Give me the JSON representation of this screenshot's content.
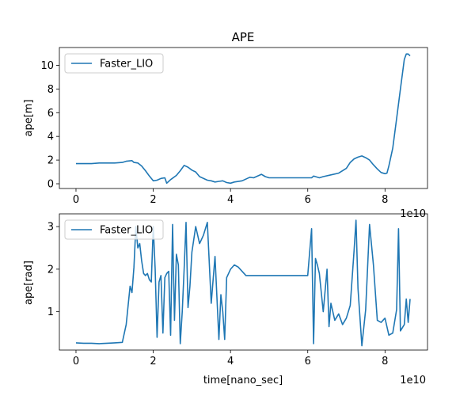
{
  "chart_data": [
    {
      "type": "line",
      "title": "APE",
      "xlabel": "",
      "ylabel": "ape[m]",
      "xlim": [
        -0.43,
        9.1
      ],
      "ylim": [
        -0.4,
        11.5
      ],
      "x_ticks": [
        0,
        2,
        4,
        6,
        8
      ],
      "y_ticks": [
        0,
        2,
        4,
        6,
        8,
        10
      ],
      "x_offset_label": "1e10",
      "legend_position": "upper-left",
      "series": [
        {
          "name": "Faster_LIO",
          "color": "#1f77b4",
          "x": [
            0,
            0.2,
            0.4,
            0.6,
            0.8,
            1.0,
            1.2,
            1.3,
            1.45,
            1.5,
            1.6,
            1.7,
            1.8,
            1.9,
            2.0,
            2.1,
            2.2,
            2.3,
            2.35,
            2.45,
            2.6,
            2.7,
            2.8,
            2.9,
            3.0,
            3.1,
            3.2,
            3.4,
            3.5,
            3.6,
            3.7,
            3.8,
            3.9,
            4.0,
            4.1,
            4.3,
            4.5,
            4.6,
            4.8,
            4.9,
            5.0,
            5.3,
            5.6,
            6.0,
            6.1,
            6.15,
            6.2,
            6.3,
            6.4,
            6.6,
            6.8,
            7.0,
            7.1,
            7.2,
            7.3,
            7.4,
            7.5,
            7.6,
            7.7,
            7.8,
            7.9,
            8.0,
            8.05,
            8.1,
            8.2,
            8.3,
            8.4,
            8.5,
            8.55,
            8.6,
            8.65
          ],
          "values": [
            1.7,
            1.7,
            1.7,
            1.75,
            1.75,
            1.75,
            1.8,
            1.9,
            1.95,
            1.8,
            1.75,
            1.5,
            1.1,
            0.65,
            0.25,
            0.3,
            0.45,
            0.5,
            0.05,
            0.35,
            0.7,
            1.1,
            1.55,
            1.4,
            1.15,
            1.0,
            0.6,
            0.3,
            0.25,
            0.15,
            0.2,
            0.25,
            0.1,
            0.05,
            0.15,
            0.25,
            0.55,
            0.5,
            0.8,
            0.6,
            0.5,
            0.5,
            0.5,
            0.5,
            0.5,
            0.65,
            0.6,
            0.5,
            0.6,
            0.75,
            0.9,
            1.3,
            1.8,
            2.1,
            2.25,
            2.35,
            2.2,
            2.0,
            1.6,
            1.25,
            0.95,
            0.85,
            0.9,
            1.5,
            3.0,
            5.5,
            8.0,
            10.5,
            10.95,
            10.95,
            10.8
          ]
        }
      ]
    },
    {
      "type": "line",
      "title": "",
      "xlabel": "time[nano_sec]",
      "ylabel": "ape[rad]",
      "xlim": [
        -0.43,
        9.1
      ],
      "ylim": [
        0.1,
        3.3
      ],
      "x_ticks": [
        0,
        2,
        4,
        6,
        8
      ],
      "y_ticks": [
        1,
        2,
        3
      ],
      "x_offset_label": "1e10",
      "legend_position": "upper-left",
      "series": [
        {
          "name": "Faster_LIO",
          "color": "#1f77b4",
          "x": [
            0,
            0.2,
            0.4,
            0.6,
            0.8,
            1.0,
            1.2,
            1.3,
            1.4,
            1.45,
            1.5,
            1.55,
            1.6,
            1.65,
            1.7,
            1.75,
            1.8,
            1.85,
            1.9,
            1.95,
            2.0,
            2.05,
            2.1,
            2.15,
            2.2,
            2.25,
            2.3,
            2.35,
            2.4,
            2.45,
            2.5,
            2.55,
            2.6,
            2.65,
            2.7,
            2.75,
            2.8,
            2.85,
            2.9,
            2.95,
            3.0,
            3.05,
            3.1,
            3.2,
            3.3,
            3.4,
            3.5,
            3.6,
            3.7,
            3.75,
            3.8,
            3.85,
            3.9,
            4.0,
            4.1,
            4.2,
            4.3,
            4.4,
            4.5,
            4.55,
            4.6,
            4.65,
            4.7,
            4.75,
            4.8,
            4.9,
            5.0,
            5.2,
            5.4,
            5.6,
            5.8,
            6.0,
            6.1,
            6.15,
            6.2,
            6.25,
            6.3,
            6.4,
            6.5,
            6.55,
            6.6,
            6.7,
            6.8,
            6.9,
            7.0,
            7.1,
            7.2,
            7.25,
            7.3,
            7.4,
            7.5,
            7.6,
            7.7,
            7.8,
            7.9,
            8.0,
            8.1,
            8.2,
            8.3,
            8.35,
            8.4,
            8.5,
            8.55,
            8.6,
            8.65
          ],
          "values": [
            0.27,
            0.26,
            0.26,
            0.25,
            0.26,
            0.27,
            0.28,
            0.7,
            1.6,
            1.45,
            2.05,
            3.0,
            2.5,
            2.6,
            2.2,
            1.9,
            1.85,
            1.9,
            1.75,
            1.7,
            3.0,
            2.0,
            0.4,
            1.7,
            1.85,
            0.5,
            1.8,
            1.9,
            1.95,
            0.45,
            3.05,
            0.8,
            2.35,
            2.1,
            0.25,
            1.0,
            2.0,
            3.1,
            1.1,
            1.6,
            2.4,
            2.7,
            3.0,
            2.6,
            2.8,
            3.1,
            1.2,
            2.3,
            0.35,
            1.4,
            1.0,
            0.35,
            1.8,
            2.0,
            2.1,
            2.05,
            1.95,
            1.85,
            1.85,
            1.85,
            1.85,
            1.85,
            1.85,
            1.85,
            1.85,
            1.85,
            1.85,
            1.85,
            1.85,
            1.85,
            1.85,
            1.85,
            2.95,
            0.25,
            2.25,
            2.1,
            1.9,
            1.0,
            2.0,
            0.65,
            1.2,
            0.8,
            0.95,
            0.7,
            0.85,
            1.15,
            2.45,
            3.15,
            1.55,
            0.2,
            1.05,
            3.05,
            2.1,
            0.8,
            0.75,
            0.85,
            0.45,
            0.5,
            1.05,
            2.95,
            0.55,
            0.7,
            1.3,
            0.75,
            1.3
          ]
        }
      ]
    }
  ]
}
